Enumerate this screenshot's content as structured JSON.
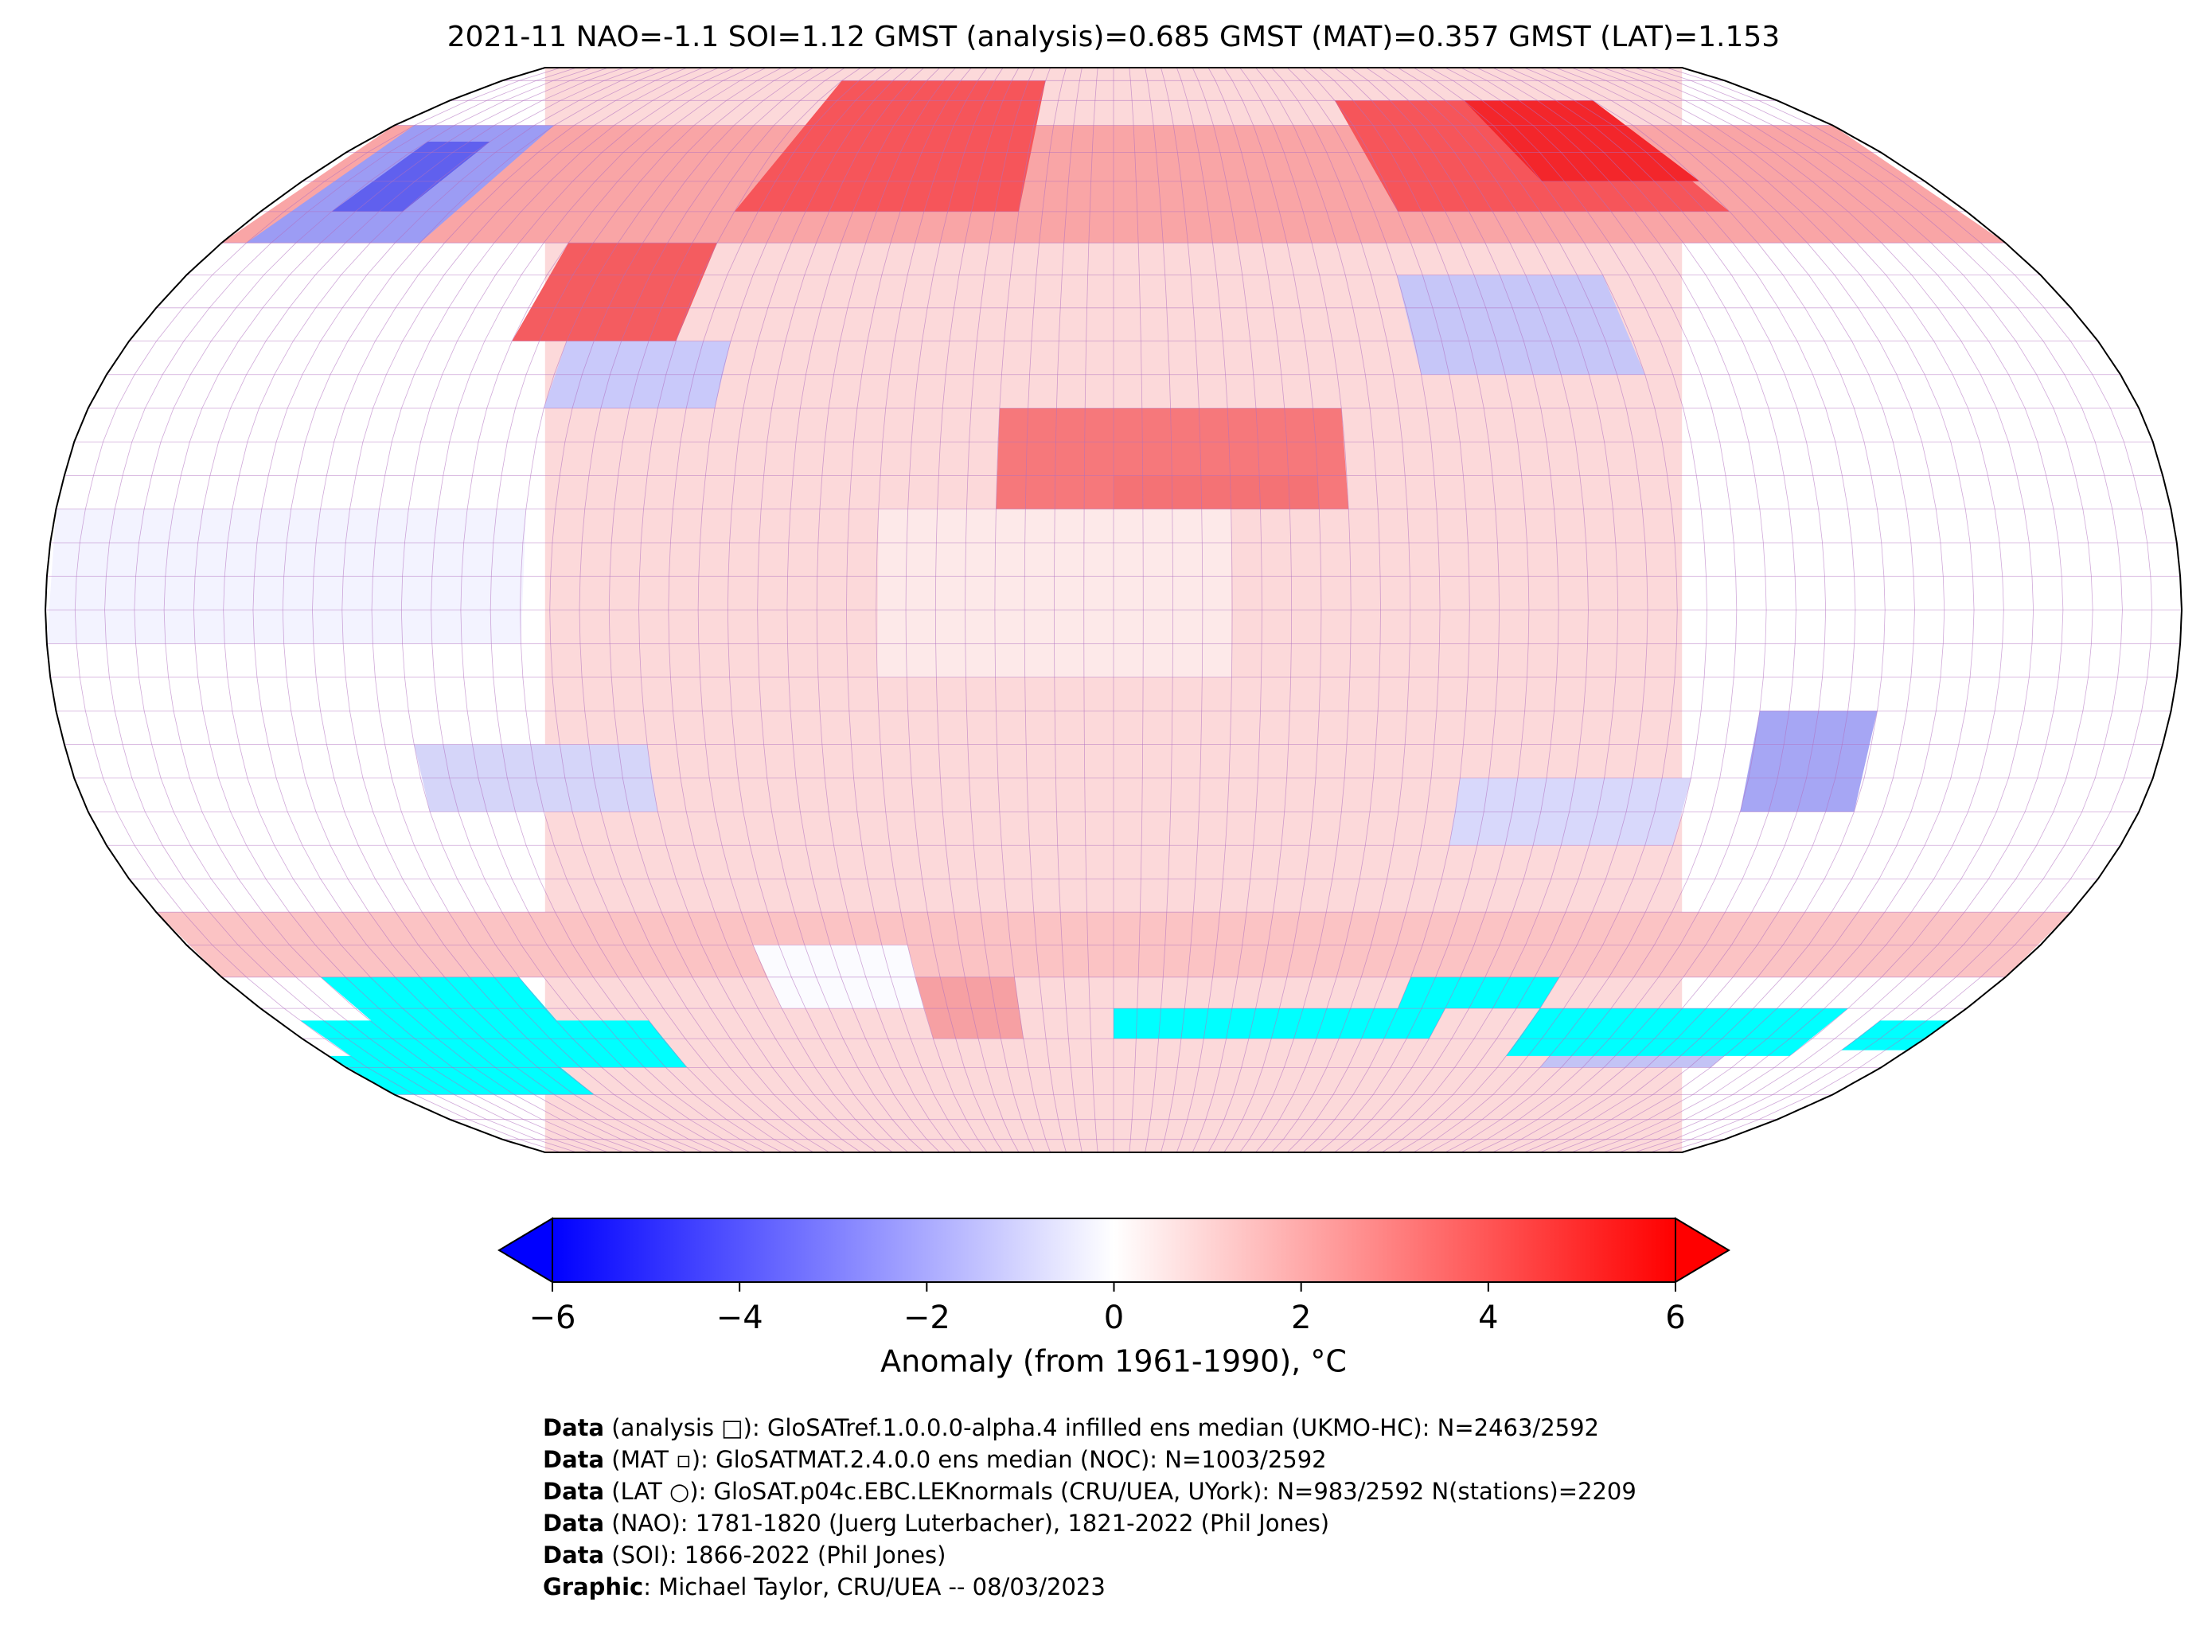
{
  "title": "2021-11 NAO=-1.1 SOI=1.12 GMST (analysis)=0.685 GMST (MAT)=0.357 GMST (LAT)=1.153",
  "colorbar": {
    "label": "Anomaly (from 1961-1990), °C",
    "clim": [
      -6,
      6
    ],
    "ticks": [
      {
        "value": -6,
        "label": "−6"
      },
      {
        "value": -4,
        "label": "−4"
      },
      {
        "value": -2,
        "label": "−2"
      },
      0,
      2,
      4,
      6
    ],
    "colors": [
      "#0000ff",
      "#ffffff",
      "#ff0000"
    ]
  },
  "footer": [
    {
      "bold": "Data",
      "text": " (analysis □): GloSATref.1.0.0.0-alpha.4 infilled ens median (UKMO-HC): N=2463/2592"
    },
    {
      "bold": "Data",
      "text": " (MAT ▫): GloSATMAT.2.4.0.0 ens median (NOC): N=1003/2592"
    },
    {
      "bold": "Data",
      "text": " (LAT ○): GloSAT.p04c.EBC.LEKnormals (CRU/UEA, UYork): N=983/2592 N(stations)=2209"
    },
    {
      "bold": "Data",
      "text": " (NAO): 1781-1820 (Juerg Luterbacher), 1821-2022 (Phil Jones)"
    },
    {
      "bold": "Data",
      "text": " (SOI): 1866-2022 (Phil Jones)"
    },
    {
      "bold": "Graphic",
      "text": ": Michael Taylor, CRU/UEA -- 08/03/2023"
    }
  ]
}
